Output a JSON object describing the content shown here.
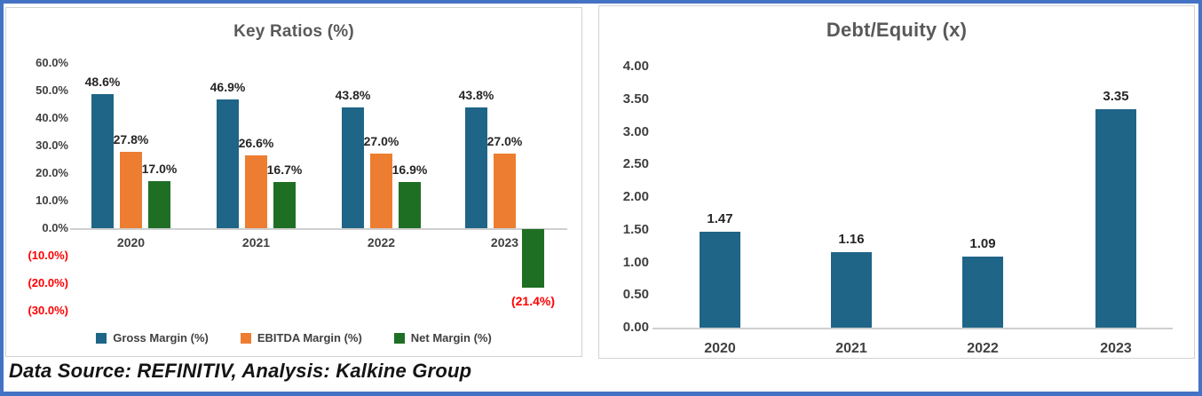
{
  "footer": {
    "text": "Data Source: REFINITIV, Analysis: Kalkine Group"
  },
  "colors": {
    "teal": "#1F6587",
    "orange": "#ED7D31",
    "green": "#1E6F24",
    "negative_label": "#FF0000",
    "title_gray": "#595959",
    "tick_gray": "#404040",
    "data_label": "#262626",
    "axis_line": "#CFCFCF",
    "panel_border": "#D2D2D2",
    "frame_border": "#4472C4"
  },
  "chart_data": [
    {
      "type": "bar",
      "title": "Key Ratios (%)",
      "categories": [
        "2020",
        "2021",
        "2022",
        "2023"
      ],
      "series": [
        {
          "name": "Gross Margin (%)",
          "name_key": "gross-margin",
          "color_key": "teal",
          "values": [
            48.6,
            46.9,
            43.8,
            43.8
          ],
          "labels": [
            "48.6%",
            "46.9%",
            "43.8%",
            "43.8%"
          ]
        },
        {
          "name": "EBITDA Margin (%)",
          "name_key": "ebitda-margin",
          "color_key": "orange",
          "values": [
            27.8,
            26.6,
            27.0,
            27.0
          ],
          "labels": [
            "27.8%",
            "26.6%",
            "27.0%",
            "27.0%"
          ]
        },
        {
          "name": "Net Margin (%)",
          "name_key": "net-margin",
          "color_key": "green",
          "values": [
            17.0,
            16.7,
            16.9,
            -21.4
          ],
          "labels": [
            "17.0%",
            "16.7%",
            "16.9%",
            "(21.4%)"
          ]
        }
      ],
      "y_axis": {
        "ticks": [
          {
            "label": "60.0%",
            "value": 60
          },
          {
            "label": "50.0%",
            "value": 50
          },
          {
            "label": "40.0%",
            "value": 40
          },
          {
            "label": "30.0%",
            "value": 30
          },
          {
            "label": "20.0%",
            "value": 20
          },
          {
            "label": "10.0%",
            "value": 10
          },
          {
            "label": "0.0%",
            "value": 0
          },
          {
            "label": "(10.0%)",
            "value": -10
          },
          {
            "label": "(20.0%)",
            "value": -20
          },
          {
            "label": "(30.0%)",
            "value": -30
          }
        ]
      },
      "ylim": [
        -30,
        60
      ],
      "grid": false,
      "legend_position": "bottom"
    },
    {
      "type": "bar",
      "title": "Debt/Equity (x)",
      "categories": [
        "2020",
        "2021",
        "2022",
        "2023"
      ],
      "series": [
        {
          "name": "Debt/Equity (x)",
          "name_key": "debt-equity",
          "color_key": "teal",
          "values": [
            1.47,
            1.16,
            1.09,
            3.35
          ],
          "labels": [
            "1.47",
            "1.16",
            "1.09",
            "3.35"
          ]
        }
      ],
      "y_axis": {
        "ticks": [
          {
            "label": "4.00",
            "value": 4.0
          },
          {
            "label": "3.50",
            "value": 3.5
          },
          {
            "label": "3.00",
            "value": 3.0
          },
          {
            "label": "2.50",
            "value": 2.5
          },
          {
            "label": "2.00",
            "value": 2.0
          },
          {
            "label": "1.50",
            "value": 1.5
          },
          {
            "label": "1.00",
            "value": 1.0
          },
          {
            "label": "0.50",
            "value": 0.5
          },
          {
            "label": "0.00",
            "value": 0.0
          }
        ]
      },
      "ylim": [
        0,
        4
      ],
      "grid": false,
      "legend_position": "none"
    }
  ]
}
